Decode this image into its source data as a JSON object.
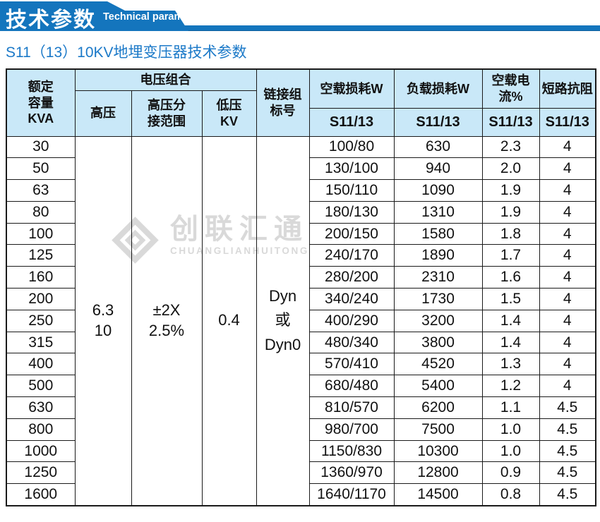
{
  "colors": {
    "banner_blue": "#1475bd",
    "subtitle_blue": "#1b79c8",
    "header_bg": "#c9e8f8",
    "border": "#1a1a1a",
    "watermark_gray": "#d9d9d9"
  },
  "banner": {
    "title_zh": "技术参数",
    "title_en": "Technical parameter"
  },
  "subtitle": "S11（13）10KV地埋变压器技术参数",
  "watermark": {
    "name_zh": "创联汇通",
    "name_en": "CHUANGLIANHUITONG"
  },
  "table": {
    "headers": {
      "capacity": "额定\n容量\nKVA",
      "voltage_group": "电压组合",
      "hv": "高压",
      "hv_tap": "高压分\n接范围",
      "lv": "低压\nKV",
      "connection": "链接组\n标号",
      "no_load_loss": "空载损耗W",
      "load_loss": "负载损耗W",
      "no_load_current": "空载电流%",
      "impedance": "短路抗阻",
      "sub": "S11/13"
    },
    "merged": {
      "hv": "6.3\n10",
      "tap": "±2X\n2.5%",
      "lv": "0.4",
      "connection": "Dyn\n或\nDyn0"
    },
    "rows": [
      {
        "kva": "30",
        "no_load": "100/80",
        "load": "630",
        "current": "2.3",
        "impedance": "4"
      },
      {
        "kva": "50",
        "no_load": "130/100",
        "load": "940",
        "current": "2.0",
        "impedance": "4"
      },
      {
        "kva": "63",
        "no_load": "150/110",
        "load": "1090",
        "current": "1.9",
        "impedance": "4"
      },
      {
        "kva": "80",
        "no_load": "180/130",
        "load": "1310",
        "current": "1.9",
        "impedance": "4"
      },
      {
        "kva": "100",
        "no_load": "200/150",
        "load": "1580",
        "current": "1.8",
        "impedance": "4"
      },
      {
        "kva": "125",
        "no_load": "240/170",
        "load": "1890",
        "current": "1.7",
        "impedance": "4"
      },
      {
        "kva": "160",
        "no_load": "280/200",
        "load": "2310",
        "current": "1.6",
        "impedance": "4"
      },
      {
        "kva": "200",
        "no_load": "340/240",
        "load": "1730",
        "current": "1.5",
        "impedance": "4"
      },
      {
        "kva": "250",
        "no_load": "400/290",
        "load": "3200",
        "current": "1.4",
        "impedance": "4"
      },
      {
        "kva": "315",
        "no_load": "480/340",
        "load": "3800",
        "current": "1.4",
        "impedance": "4"
      },
      {
        "kva": "400",
        "no_load": "570/410",
        "load": "4520",
        "current": "1.3",
        "impedance": "4"
      },
      {
        "kva": "500",
        "no_load": "680/480",
        "load": "5400",
        "current": "1.2",
        "impedance": "4"
      },
      {
        "kva": "630",
        "no_load": "810/570",
        "load": "6200",
        "current": "1.1",
        "impedance": "4.5"
      },
      {
        "kva": "800",
        "no_load": "980/700",
        "load": "7500",
        "current": "1.0",
        "impedance": "4.5"
      },
      {
        "kva": "1000",
        "no_load": "1150/830",
        "load": "10300",
        "current": "1.0",
        "impedance": "4.5"
      },
      {
        "kva": "1250",
        "no_load": "1360/970",
        "load": "12800",
        "current": "0.9",
        "impedance": "4.5"
      },
      {
        "kva": "1600",
        "no_load": "1640/1170",
        "load": "14500",
        "current": "0.8",
        "impedance": "4.5"
      }
    ]
  }
}
